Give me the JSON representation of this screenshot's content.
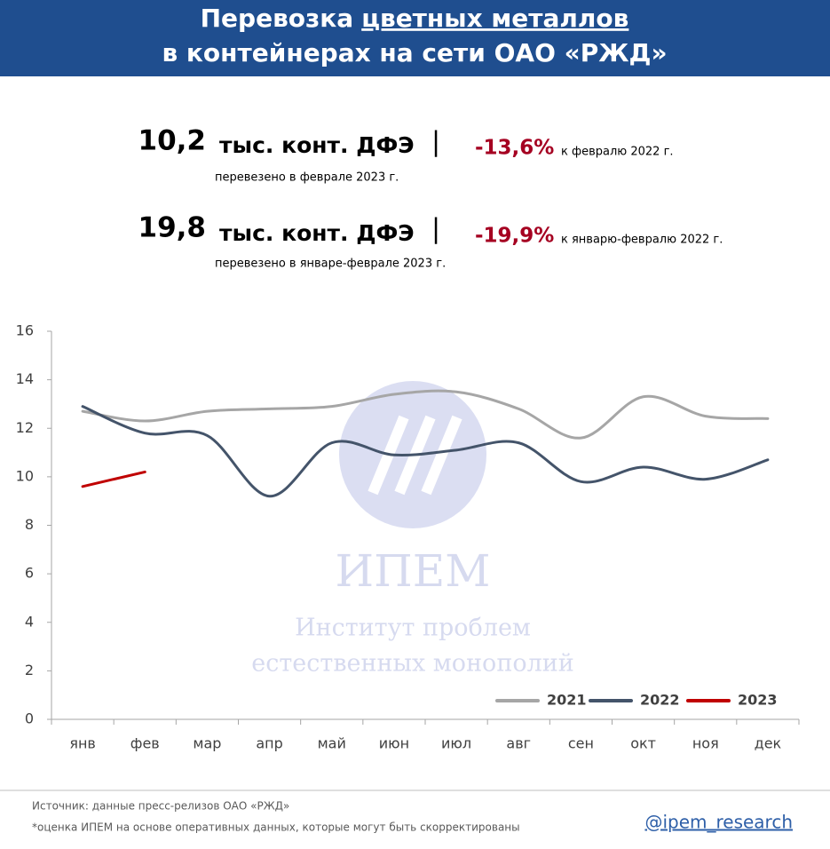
{
  "header": {
    "title": [
      "Перевозка",
      "цветных металлов",
      "в контейнерах на сети ОАО «РЖД»"
    ]
  },
  "stats": [
    {
      "value": "10,2",
      "unit": "тыс. конт. ДФЭ",
      "separator": "|",
      "change": "-13,6%",
      "comparison": "к февралю 2022 г.",
      "note": "перевезено в феврале 2023 г."
    },
    {
      "value": "19,8",
      "unit": "тыс. конт. ДФЭ",
      "separator": "|",
      "change": "-19,9%",
      "comparison": "к январю-февралю 2022 г.",
      "note": "перевезено в январе-феврале 2023 г."
    }
  ],
  "watermark": {
    "name": "ИПЕМ",
    "line1": "Институт проблем",
    "line2": "естественных монополий"
  },
  "chart_data": {
    "type": "line",
    "categories": [
      "янв",
      "фев",
      "мар",
      "апр",
      "май",
      "июн",
      "июл",
      "авг",
      "сен",
      "окт",
      "ноя",
      "дек"
    ],
    "series": [
      {
        "name": "2021",
        "color": "#a6a6a6",
        "values": [
          12.7,
          12.3,
          12.7,
          12.8,
          12.9,
          13.4,
          13.5,
          12.8,
          11.6,
          13.3,
          12.5,
          12.4
        ]
      },
      {
        "name": "2022",
        "color": "#44546a",
        "values": [
          12.9,
          11.8,
          11.7,
          9.2,
          11.4,
          10.9,
          11.1,
          11.4,
          9.8,
          10.4,
          9.9,
          10.7
        ]
      },
      {
        "name": "2023",
        "color": "#c00000",
        "values": [
          9.6,
          10.2,
          null,
          null,
          null,
          null,
          null,
          null,
          null,
          null,
          null,
          null
        ]
      }
    ],
    "ylim": [
      0,
      16
    ],
    "yticks": [
      0,
      2,
      4,
      6,
      8,
      10,
      12,
      14,
      16
    ],
    "grid": false,
    "legend": "lower right"
  },
  "footer": {
    "source": "Источник: данные пресс-релизов ОАО «РЖД»",
    "note": "*оценка ИПЕМ на основе оперативных данных, которые могут быть скорректированы",
    "handle": "@ipem_research"
  }
}
